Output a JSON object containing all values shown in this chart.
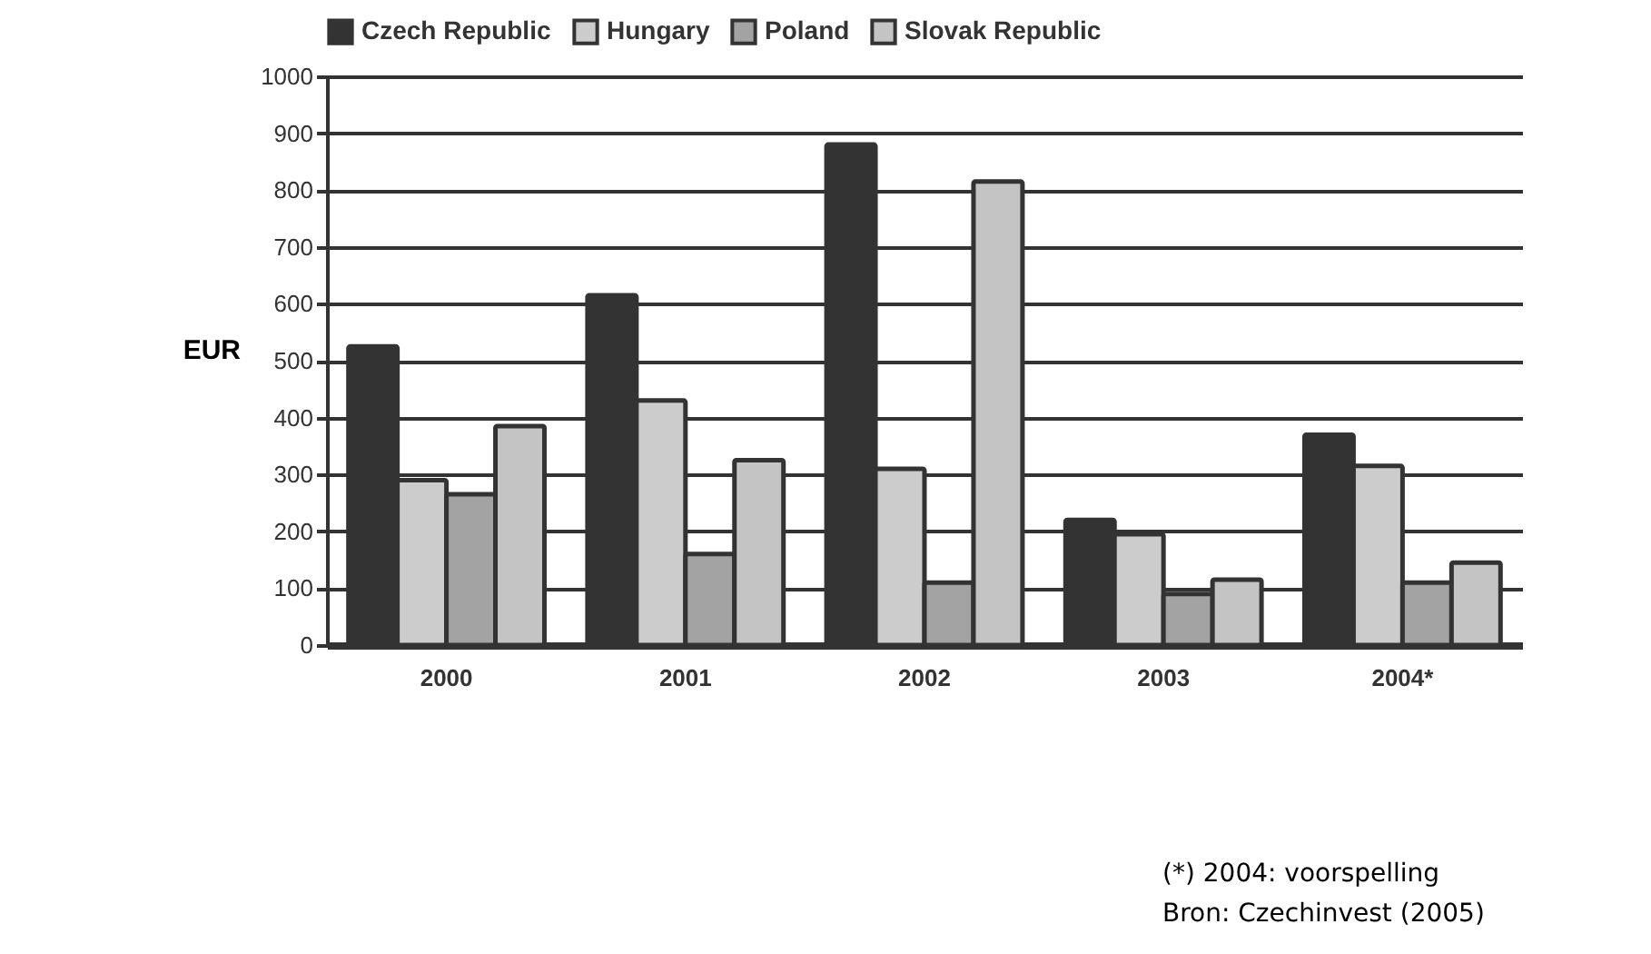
{
  "chart_data": {
    "type": "bar",
    "ylabel": "EUR",
    "categories": [
      "2000",
      "2001",
      "2002",
      "2003",
      "2004*"
    ],
    "series": [
      {
        "name": "Czech Republic",
        "color": "#333333",
        "values": [
          525,
          615,
          880,
          220,
          370
        ]
      },
      {
        "name": "Hungary",
        "color": "#cccccc",
        "values": [
          290,
          430,
          310,
          195,
          315
        ]
      },
      {
        "name": "Poland",
        "color": "#a3a3a3",
        "values": [
          265,
          160,
          110,
          90,
          110
        ]
      },
      {
        "name": "Slovak Republic",
        "color": "#c4c4c4",
        "values": [
          385,
          325,
          815,
          115,
          145
        ]
      }
    ],
    "ylim": [
      0,
      1000
    ],
    "yticks": [
      0,
      100,
      200,
      300,
      400,
      500,
      600,
      700,
      800,
      900,
      1000
    ],
    "grid": "y",
    "legend": "top",
    "annotations": [
      "(*) 2004: voorspelling",
      "Bron: Czechinvest (2005)"
    ]
  }
}
